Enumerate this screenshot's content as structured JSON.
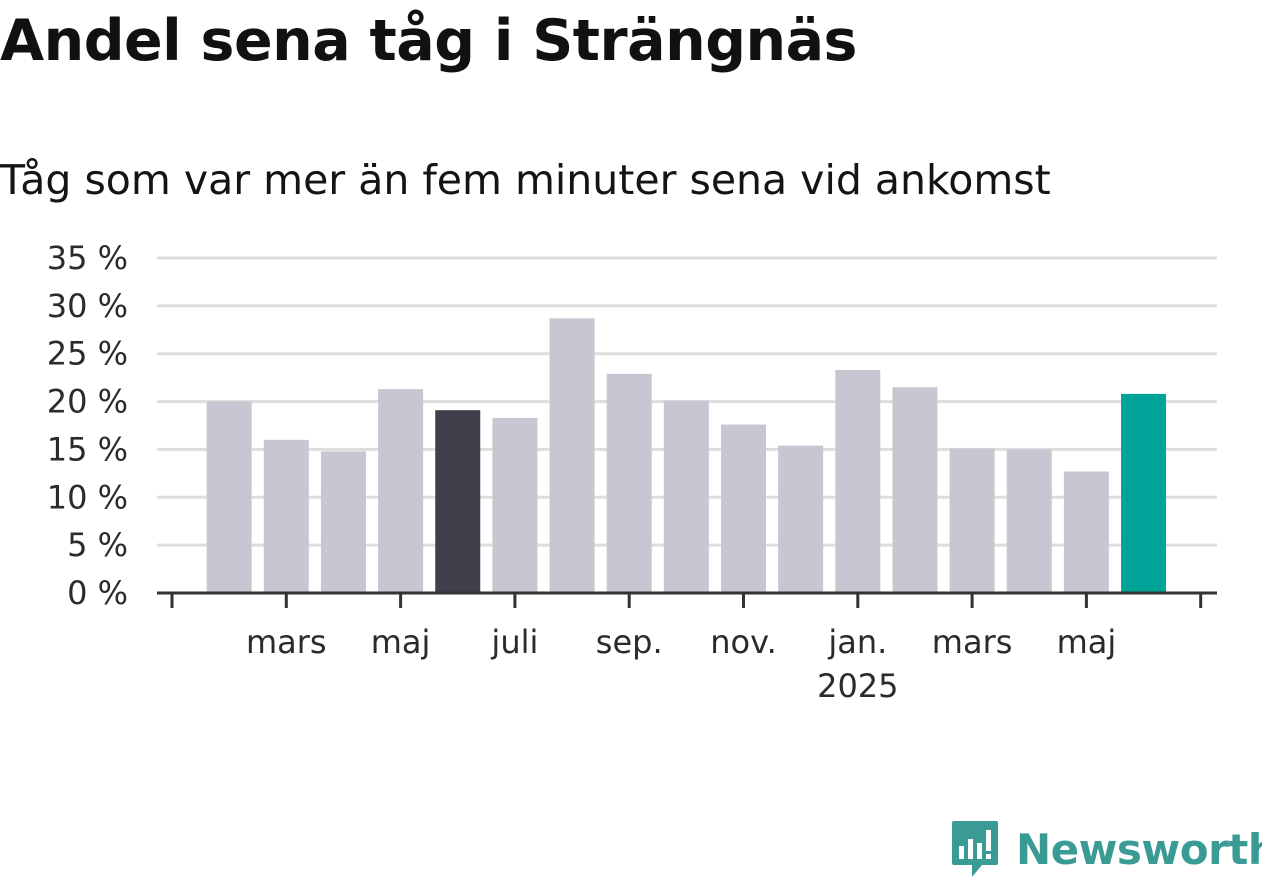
{
  "title": "Andel sena tåg i Strängnäs",
  "subtitle": "Tåg som var mer än fem minuter sena vid ankomst",
  "logo_text": "Newsworthy",
  "colors": {
    "bar_default": "#c8c6d1",
    "bar_highlight_dark": "#413f4c",
    "bar_highlight_current": "#00a398",
    "grid": "#dddddd",
    "axis": "#333333"
  },
  "chart_data": {
    "type": "bar",
    "unit": "%",
    "ylim": [
      0,
      35
    ],
    "yticks": [
      0,
      5,
      10,
      15,
      20,
      25,
      30,
      35
    ],
    "ytick_labels": [
      "0 %",
      "5 %",
      "10 %",
      "15 %",
      "20 %",
      "25 %",
      "30 %",
      "35 %"
    ],
    "grid": true,
    "categories": [
      "2024-02",
      "2024-03",
      "2024-04",
      "2024-05",
      "2024-06",
      "2024-07",
      "2024-08",
      "2024-09",
      "2024-10",
      "2024-11",
      "2024-12",
      "2025-01",
      "2025-02",
      "2025-03",
      "2025-04",
      "2025-05",
      "2025-06"
    ],
    "values": [
      20.0,
      16.0,
      14.8,
      21.3,
      19.1,
      18.3,
      28.7,
      22.9,
      20.1,
      17.6,
      15.4,
      23.3,
      21.5,
      15.1,
      15.0,
      12.7,
      20.8
    ],
    "highlight": {
      "2024-06": "bar_highlight_dark",
      "2025-06": "bar_highlight_current"
    },
    "x_tick_labels": [
      {
        "label": "mars",
        "sub": ""
      },
      {
        "label": "maj",
        "sub": ""
      },
      {
        "label": "juli",
        "sub": ""
      },
      {
        "label": "sep.",
        "sub": ""
      },
      {
        "label": "nov.",
        "sub": ""
      },
      {
        "label": "jan.",
        "sub": "2025"
      },
      {
        "label": "mars",
        "sub": ""
      },
      {
        "label": "maj",
        "sub": ""
      }
    ]
  }
}
